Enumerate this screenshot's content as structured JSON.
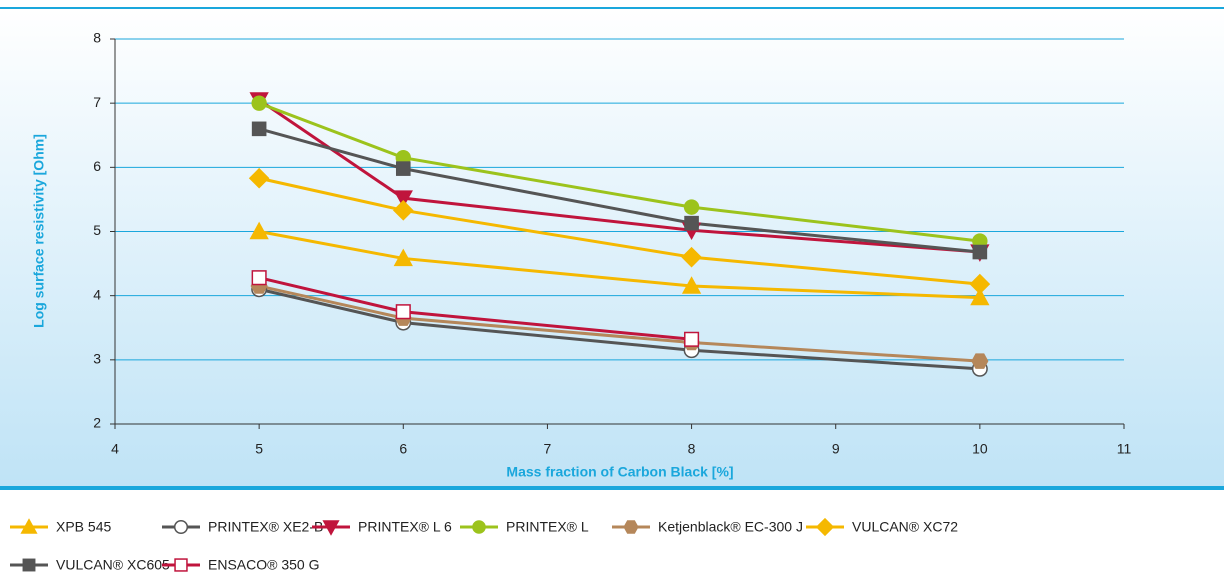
{
  "chart_data": {
    "type": "line",
    "x_label": "Mass fraction of Carbon Black [%]",
    "y_label": "Log surface resistivity [Ohm]",
    "x": [
      5,
      6,
      8,
      10
    ],
    "xlim": [
      4,
      11
    ],
    "xticks": [
      4,
      5,
      6,
      7,
      8,
      9,
      10,
      11
    ],
    "ylim": [
      2,
      8
    ],
    "yticks": [
      2,
      3,
      4,
      5,
      6,
      7,
      8
    ],
    "grid": true,
    "series": [
      {
        "name": "XPB 545",
        "color": "#f5b800",
        "marker": "triangle-up",
        "values": [
          5.0,
          4.58,
          4.15,
          3.97
        ]
      },
      {
        "name": "PRINTEX® XE2-B",
        "color": "#555555",
        "marker": "circle-open",
        "values": [
          4.1,
          3.58,
          3.15,
          2.86
        ]
      },
      {
        "name": "PRINTEX® L 6",
        "color": "#c0143c",
        "marker": "triangle-down",
        "values": [
          7.05,
          5.52,
          5.02,
          4.68
        ]
      },
      {
        "name": "PRINTEX® L",
        "color": "#9cc31c",
        "marker": "circle",
        "values": [
          7.0,
          6.15,
          5.38,
          4.85
        ]
      },
      {
        "name": "Ketjenblack® EC-300 J",
        "color": "#b5875a",
        "marker": "hexagon",
        "values": [
          4.15,
          3.65,
          3.27,
          2.98
        ]
      },
      {
        "name": "VULCAN® XC72",
        "color": "#f5b800",
        "marker": "diamond",
        "values": [
          5.83,
          5.33,
          4.6,
          4.18
        ]
      },
      {
        "name": "VULCAN® XC605",
        "color": "#555555",
        "marker": "square",
        "values": [
          6.6,
          5.98,
          5.13,
          4.68
        ]
      },
      {
        "name": "ENSACO® 350 G",
        "color": "#c0143c",
        "marker": "square-open",
        "values": [
          4.28,
          3.75,
          3.32,
          null
        ]
      }
    ]
  }
}
